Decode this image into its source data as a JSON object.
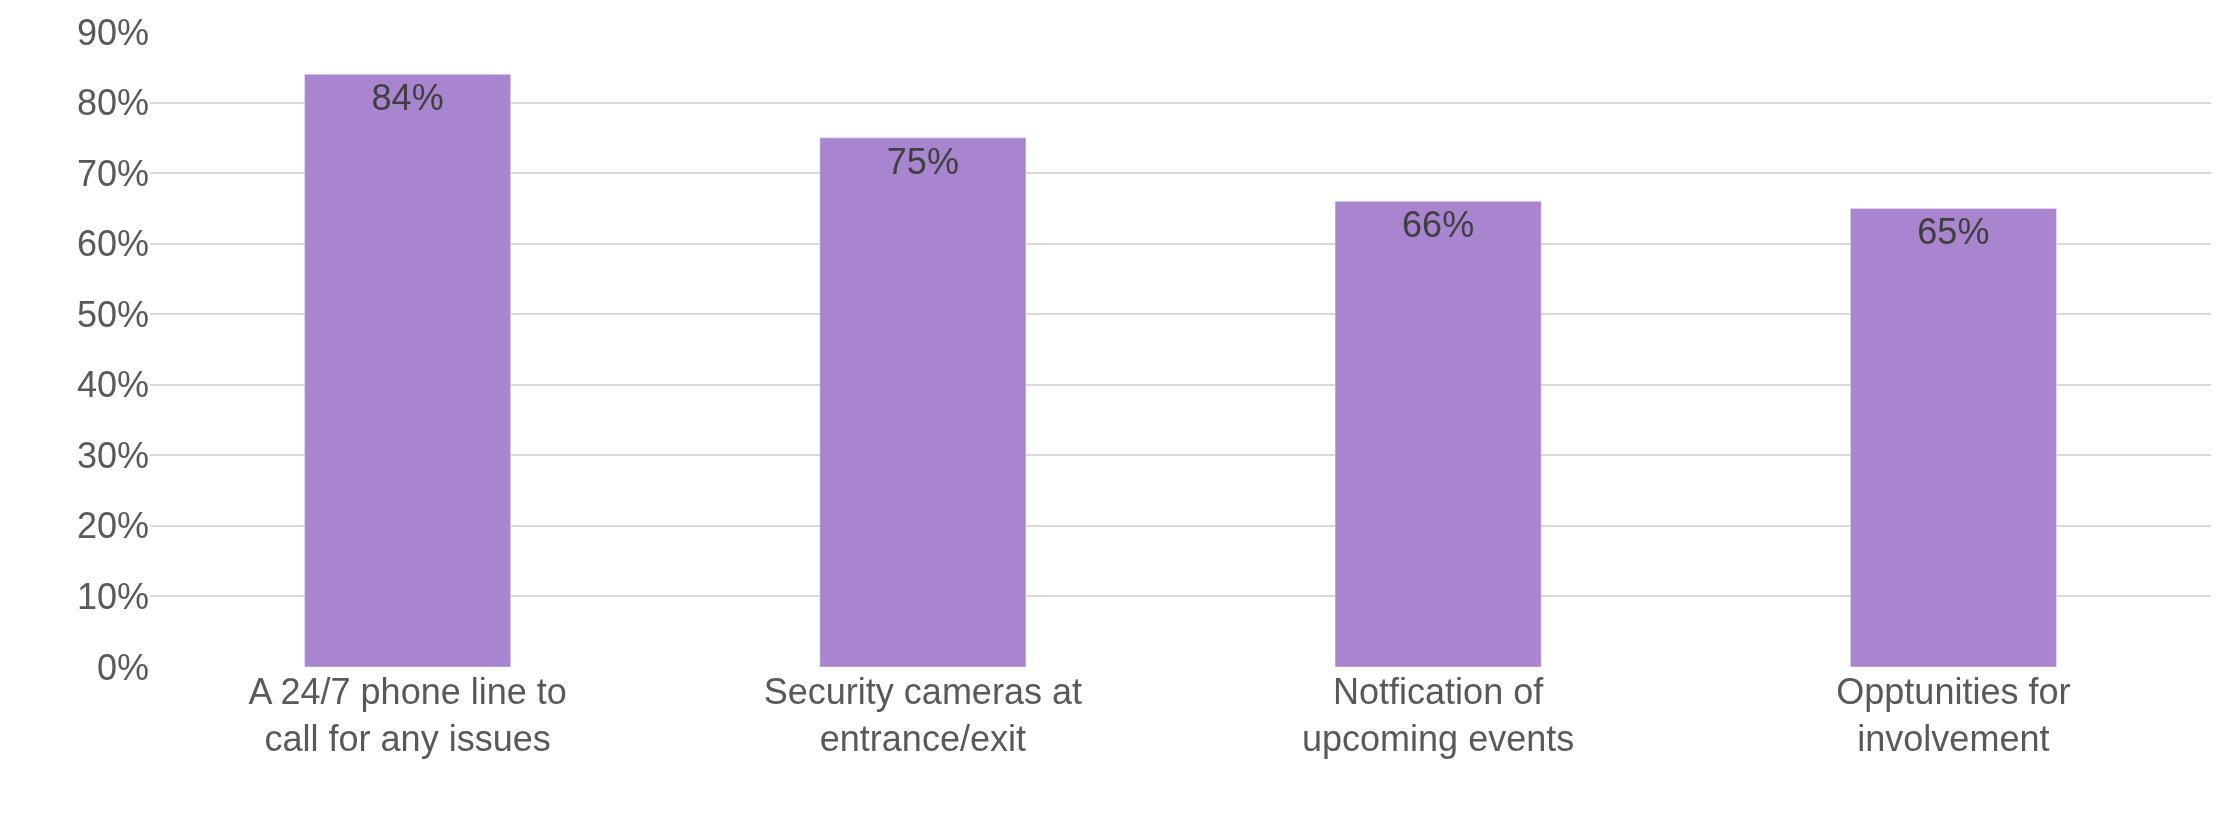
{
  "chart_data": {
    "type": "bar",
    "categories": [
      "A 24/7 phone line to call for any issues",
      "Security cameras at entrance/exit",
      "Notfication of upcoming events",
      "Opptunities for involvement"
    ],
    "values": [
      84,
      75,
      66,
      65
    ],
    "value_labels": [
      "84%",
      "75%",
      "66%",
      "65%"
    ],
    "color": "#a984cf",
    "ylim": [
      0,
      90
    ],
    "yticks": [
      {
        "value": 0,
        "label": "0%"
      },
      {
        "value": 10,
        "label": "10%"
      },
      {
        "value": 20,
        "label": "20%"
      },
      {
        "value": 30,
        "label": "30%"
      },
      {
        "value": 40,
        "label": "40%"
      },
      {
        "value": 50,
        "label": "50%"
      },
      {
        "value": 60,
        "label": "60%"
      },
      {
        "value": 70,
        "label": "70%"
      },
      {
        "value": 80,
        "label": "80%"
      },
      {
        "value": 90,
        "label": "90%"
      }
    ],
    "grid": "y",
    "legend": false
  }
}
